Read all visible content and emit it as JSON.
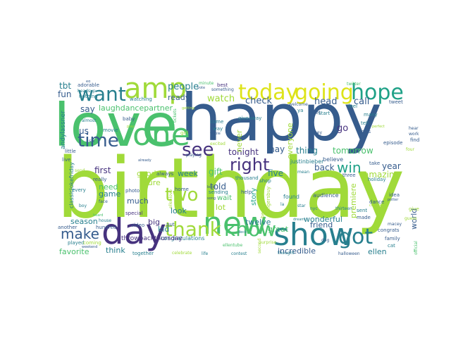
{
  "palette": {
    "lime": "#a0da39",
    "green": "#4ac16d",
    "teal": "#1fa187",
    "cyan": "#277f8e",
    "blue": "#365c8d",
    "indigo": "#46327e",
    "purple": "#440154",
    "yellow": "#dde318"
  },
  "words": [
    {
      "text": "birthday",
      "color": "#a0da39"
    },
    {
      "text": "happy",
      "color": "#365c8d"
    },
    {
      "text": "love",
      "color": "#4ac16d"
    },
    {
      "text": "day",
      "color": "#46327e"
    },
    {
      "text": "show",
      "color": "#277f8e"
    },
    {
      "text": "new",
      "color": "#4ac16d"
    },
    {
      "text": "one",
      "color": "#4ac16d"
    },
    {
      "text": "amp",
      "color": "#a0da39"
    },
    {
      "text": "today",
      "color": "#dde318"
    },
    {
      "text": "going",
      "color": "#dde318"
    },
    {
      "text": "hope",
      "color": "#1fa187"
    },
    {
      "text": "want",
      "color": "#277f8e"
    },
    {
      "text": "time",
      "color": "#365c8d"
    },
    {
      "text": "thank",
      "color": "#a0da39"
    },
    {
      "text": "know",
      "color": "#4ac16d"
    },
    {
      "text": "got",
      "color": "#277f8e"
    },
    {
      "text": "see",
      "color": "#46327e"
    },
    {
      "text": "two",
      "color": "#a0da39"
    },
    {
      "text": "right",
      "color": "#46327e"
    },
    {
      "text": "win",
      "color": "#1fa187"
    },
    {
      "text": "make",
      "color": "#365c8d"
    },
    {
      "text": "watch",
      "color": "#a0da39"
    },
    {
      "text": "check",
      "color": "#365c8d"
    },
    {
      "text": "head",
      "color": "#365c8d"
    },
    {
      "text": "people",
      "color": "#277f8e"
    },
    {
      "text": "ready",
      "color": "#365c8d"
    },
    {
      "text": "laughdancepartner",
      "color": "#4ac16d"
    },
    {
      "text": "first",
      "color": "#46327e"
    },
    {
      "text": "tonight",
      "color": "#46327e"
    },
    {
      "text": "told",
      "color": "#365c8d"
    },
    {
      "text": "gift",
      "color": "#4ac16d"
    },
    {
      "text": "five",
      "color": "#277f8e"
    },
    {
      "text": "may",
      "color": "#365c8d"
    },
    {
      "text": "thing",
      "color": "#277f8e"
    },
    {
      "text": "tomorrow",
      "color": "#4ac16d"
    },
    {
      "text": "back",
      "color": "#365c8d"
    },
    {
      "text": "year",
      "color": "#365c8d"
    },
    {
      "text": "amazing",
      "color": "#a0da39"
    },
    {
      "text": "call",
      "color": "#365c8d"
    },
    {
      "text": "go",
      "color": "#46327e"
    },
    {
      "text": "say",
      "color": "#365c8d"
    },
    {
      "text": "us",
      "color": "#365c8d"
    },
    {
      "text": "fun",
      "color": "#365c8d"
    },
    {
      "text": "tbt",
      "color": "#277f8e"
    },
    {
      "text": "better",
      "color": "#a0da39"
    },
    {
      "text": "good",
      "color": "#a0da39"
    },
    {
      "text": "need",
      "color": "#4ac16d"
    },
    {
      "text": "much",
      "color": "#365c8d"
    },
    {
      "text": "sure",
      "color": "#a0da39"
    },
    {
      "text": "week",
      "color": "#277f8e"
    },
    {
      "text": "game",
      "color": "#277f8e"
    },
    {
      "text": "look",
      "color": "#277f8e"
    },
    {
      "text": "lot",
      "color": "#a0da39"
    },
    {
      "text": "big",
      "color": "#46327e"
    },
    {
      "text": "kid",
      "color": "#277f8e"
    },
    {
      "text": "season",
      "color": "#277f8e"
    },
    {
      "text": "favorite",
      "color": "#4ac16d"
    },
    {
      "text": "think",
      "color": "#277f8e"
    },
    {
      "text": "twelve",
      "color": "#277f8e"
    },
    {
      "text": "great",
      "color": "#4ac16d"
    },
    {
      "text": "friend",
      "color": "#365c8d"
    },
    {
      "text": "incredible",
      "color": "#365c8d"
    },
    {
      "text": "ellen",
      "color": "#277f8e"
    },
    {
      "text": "wonderful",
      "color": "#277f8e"
    },
    {
      "text": "world",
      "color": "#365c8d"
    },
    {
      "text": "premiere",
      "color": "#a0da39"
    },
    {
      "text": "never",
      "color": "#a0da39"
    },
    {
      "text": "everyone",
      "color": "#a0da39"
    },
    {
      "text": "story",
      "color": "#1fa187"
    },
    {
      "text": "wait",
      "color": "#4ac16d"
    },
    {
      "text": "congratulations",
      "color": "#277f8e"
    },
    {
      "text": "throwbackthursday",
      "color": "#46327e"
    },
    {
      "text": "watching",
      "color": "#277f8e"
    },
    {
      "text": "adorable",
      "color": "#365c8d"
    },
    {
      "text": "nothing",
      "color": "#277f8e"
    },
    {
      "text": "almost",
      "color": "#277f8e"
    },
    {
      "text": "andylassner",
      "color": "#277f8e"
    },
    {
      "text": "classicjokefriday",
      "color": "#277f8e"
    },
    {
      "text": "justinbieber",
      "color": "#277f8e"
    },
    {
      "text": "thousand",
      "color": "#277f8e"
    },
    {
      "text": "believe",
      "color": "#365c8d"
    },
    {
      "text": "three",
      "color": "#365c8d"
    },
    {
      "text": "holiday",
      "color": "#277f8e"
    },
    {
      "text": "audience",
      "color": "#365c8d"
    },
    {
      "text": "found",
      "color": "#277f8e"
    },
    {
      "text": "thought",
      "color": "#277f8e"
    },
    {
      "text": "start",
      "color": "#277f8e"
    },
    {
      "text": "feel",
      "color": "#277f8e"
    },
    {
      "text": "ya",
      "color": "#277f8e"
    },
    {
      "text": "many",
      "color": "#277f8e"
    },
    {
      "text": "tell",
      "color": "#277f8e"
    },
    {
      "text": "miss",
      "color": "#365c8d"
    },
    {
      "text": "tweet",
      "color": "#365c8d"
    },
    {
      "text": "take",
      "color": "#365c8d"
    },
    {
      "text": "idea",
      "color": "#365c8d"
    },
    {
      "text": "made",
      "color": "#365c8d"
    },
    {
      "text": "sent",
      "color": "#277f8e"
    },
    {
      "text": "congrats",
      "color": "#365c8d"
    },
    {
      "text": "family",
      "color": "#365c8d"
    },
    {
      "text": "cat",
      "color": "#277f8e"
    },
    {
      "text": "dance",
      "color": "#365c8d"
    },
    {
      "text": "give",
      "color": "#a0da39"
    },
    {
      "text": "find",
      "color": "#365c8d"
    },
    {
      "text": "episode",
      "color": "#365c8d"
    },
    {
      "text": "let",
      "color": "#365c8d"
    },
    {
      "text": "hey",
      "color": "#365c8d"
    },
    {
      "text": "welcome",
      "color": "#365c8d"
    },
    {
      "text": "shop",
      "color": "#277f8e"
    },
    {
      "text": "help",
      "color": "#365c8d"
    },
    {
      "text": "home",
      "color": "#365c8d"
    },
    {
      "text": "photo",
      "color": "#365c8d"
    },
    {
      "text": "video",
      "color": "#365c8d"
    },
    {
      "text": "special",
      "color": "#46327e"
    },
    {
      "text": "always",
      "color": "#365c8d"
    },
    {
      "text": "still",
      "color": "#277f8e"
    },
    {
      "text": "put",
      "color": "#365c8d"
    },
    {
      "text": "baby",
      "color": "#365c8d"
    },
    {
      "text": "girl",
      "color": "#a0da39"
    },
    {
      "text": "movie",
      "color": "#277f8e"
    },
    {
      "text": "really",
      "color": "#365c8d"
    },
    {
      "text": "every",
      "color": "#277f8e"
    },
    {
      "text": "another",
      "color": "#365c8d"
    },
    {
      "text": "played",
      "color": "#277f8e"
    },
    {
      "text": "coming",
      "color": "#a0da39"
    },
    {
      "text": "together",
      "color": "#277f8e"
    },
    {
      "text": "hundred",
      "color": "#365c8d"
    },
    {
      "text": "celebrate",
      "color": "#a0da39"
    },
    {
      "text": "life",
      "color": "#277f8e"
    },
    {
      "text": "contest",
      "color": "#277f8e"
    },
    {
      "text": "halloween",
      "color": "#365c8d"
    },
    {
      "text": "dog",
      "color": "#365c8d"
    },
    {
      "text": "fingersbuy",
      "color": "#a0da39"
    },
    {
      "text": "beautiful",
      "color": "#a0da39"
    },
    {
      "text": "sending",
      "color": "#277f8e"
    },
    {
      "text": "talking",
      "color": "#277f8e"
    },
    {
      "text": "best",
      "color": "#46327e"
    },
    {
      "text": "something",
      "color": "#365c8d"
    },
    {
      "text": "giveaway",
      "color": "#277f8e"
    },
    {
      "text": "come",
      "color": "#277f8e"
    },
    {
      "text": "way",
      "color": "#277f8e"
    },
    {
      "text": "ellentube",
      "color": "#4ac16d"
    },
    {
      "text": "excited",
      "color": "#a0da39"
    },
    {
      "text": "playing",
      "color": "#365c8d"
    },
    {
      "text": "twitter",
      "color": "#4ac16d"
    },
    {
      "text": "minute",
      "color": "#4ac16d"
    },
    {
      "text": "tickets",
      "color": "#4ac16d"
    },
    {
      "text": "six",
      "color": "#365c8d"
    },
    {
      "text": "face",
      "color": "#365c8d"
    },
    {
      "text": "boy",
      "color": "#277f8e"
    },
    {
      "text": "house",
      "color": "#277f8e"
    },
    {
      "text": "weekend",
      "color": "#365c8d"
    },
    {
      "text": "headsup",
      "color": "#277f8e"
    },
    {
      "text": "second",
      "color": "#a0da39"
    },
    {
      "text": "surprise",
      "color": "#a0da39"
    },
    {
      "text": "mean",
      "color": "#277f8e"
    },
    {
      "text": "la",
      "color": "#277f8e"
    },
    {
      "text": "star",
      "color": "#277f8e"
    },
    {
      "text": "nyc",
      "color": "#277f8e"
    },
    {
      "text": "thirteen",
      "color": "#277f8e"
    },
    {
      "text": "chance",
      "color": "#a0da39"
    },
    {
      "text": "perfect",
      "color": "#a0da39"
    },
    {
      "text": "hear",
      "color": "#365c8d"
    },
    {
      "text": "work",
      "color": "#365c8d"
    },
    {
      "text": "four",
      "color": "#a0da39"
    },
    {
      "text": "guess",
      "color": "#a0da39"
    },
    {
      "text": "macey",
      "color": "#365c8d"
    },
    {
      "text": "official",
      "color": "#4ac16d"
    },
    {
      "text": "ed",
      "color": "#365c8d"
    },
    {
      "text": "play",
      "color": "#a0da39"
    },
    {
      "text": "getting",
      "color": "#a0da39"
    },
    {
      "text": "whole",
      "color": "#365c8d"
    },
    {
      "text": "vote",
      "color": "#365c8d"
    },
    {
      "text": "dream",
      "color": "#277f8e"
    },
    {
      "text": "deck",
      "color": "#277f8e"
    },
    {
      "text": "looking",
      "color": "#277f8e"
    },
    {
      "text": "song",
      "color": "#365c8d"
    },
    {
      "text": "book",
      "color": "#365c8d"
    },
    {
      "text": "potter",
      "color": "#365c8d"
    },
    {
      "text": "ellenlove",
      "color": "#a0da39"
    },
    {
      "text": "heard",
      "color": "#4ac16d"
    },
    {
      "text": "little",
      "color": "#365c8d"
    },
    {
      "text": "live",
      "color": "#365c8d"
    },
    {
      "text": "send",
      "color": "#a0da39"
    },
    {
      "text": "already",
      "color": "#365c8d"
    },
    {
      "text": "miss",
      "color": "#365c8d"
    }
  ]
}
